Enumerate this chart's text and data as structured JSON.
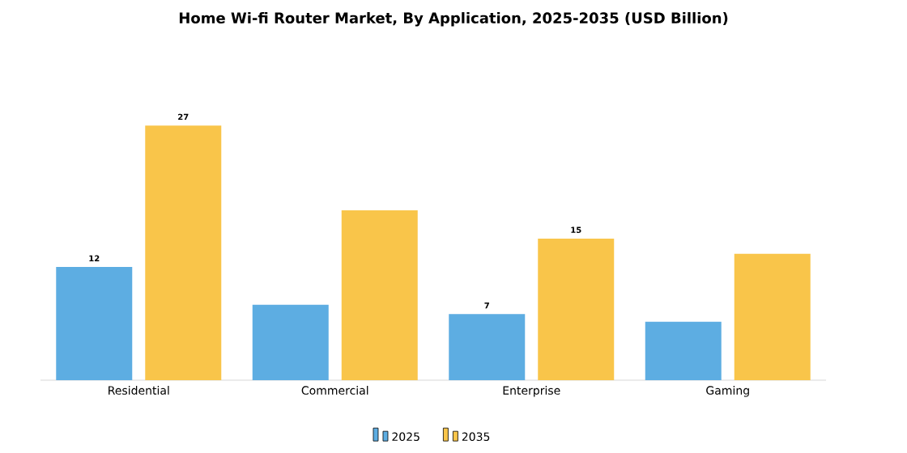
{
  "chart_data": {
    "type": "bar",
    "title": "Home Wi-fi Router Market, By Application, 2025-2035 (USD Billion)",
    "categories": [
      "Residential",
      "Commercial",
      "Enterprise",
      "Gaming"
    ],
    "series": [
      {
        "name": "2025",
        "color": "#5dade2",
        "values": [
          12,
          8,
          7,
          6.2
        ],
        "value_labels": [
          "12",
          null,
          "7",
          null
        ]
      },
      {
        "name": "2035",
        "color": "#f9c54a",
        "values": [
          27,
          18,
          15,
          13.4
        ],
        "value_labels": [
          "27",
          null,
          "15",
          null
        ]
      }
    ],
    "legend": "bottom"
  }
}
